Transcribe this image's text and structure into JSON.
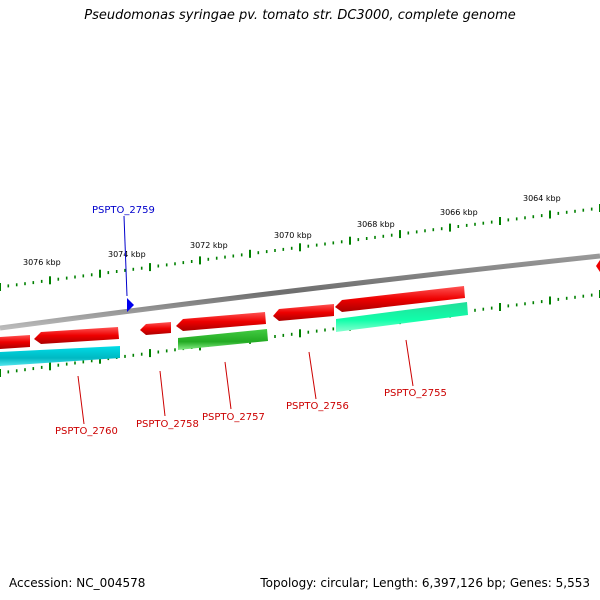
{
  "title": "Pseudomonas syringae pv. tomato str. DC3000, complete genome",
  "footer": {
    "accession": "Accession: NC_004578",
    "summary": "Topology: circular; Length: 6,397,126 bp; Genes: 5,553"
  },
  "colors": {
    "backbone": "#808080",
    "tick": "#008000",
    "gene_forward": "#ff0000",
    "gene_cds_cyan": "#00c8d0",
    "gene_cds_green": "#33cc33",
    "gene_cds_teal": "#22ffaa",
    "label_red": "#cc0000",
    "label_blue": "#0000cc"
  },
  "scale_labels": [
    "3076 kbp",
    "3074 kbp",
    "3072 kbp",
    "3070 kbp",
    "3068 kbp",
    "3066 kbp",
    "3064 kbp"
  ],
  "genes": [
    {
      "name": "PSPTO_2760",
      "color": "red"
    },
    {
      "name": "PSPTO_2759",
      "color": "blue"
    },
    {
      "name": "PSPTO_2758",
      "color": "red"
    },
    {
      "name": "PSPTO_2757",
      "color": "red"
    },
    {
      "name": "PSPTO_2756",
      "color": "red"
    },
    {
      "name": "PSPTO_2755",
      "color": "red"
    }
  ]
}
